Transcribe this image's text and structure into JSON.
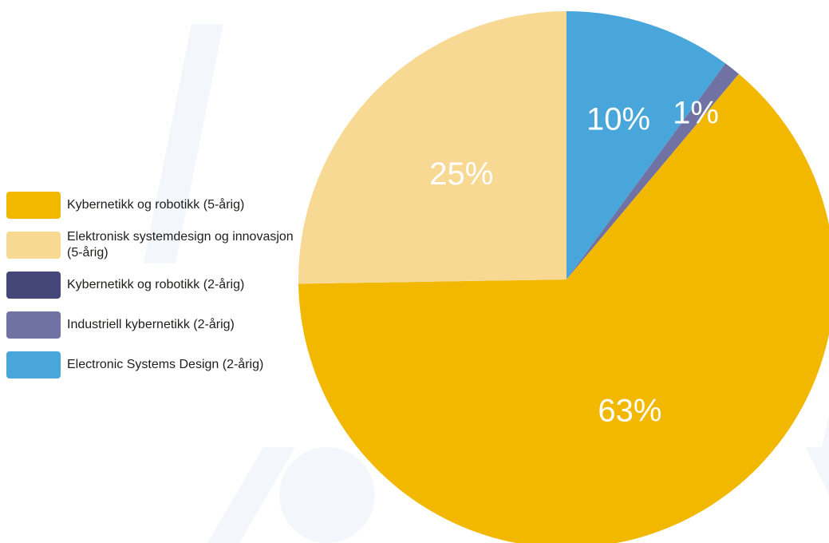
{
  "chart_data": {
    "type": "pie",
    "title": "",
    "categories": [
      "Kybernetikk og robotikk (5-årig)",
      "Elektronisk systemdesign og innovasjon (5-årig)",
      "Kybernetikk og robotikk (2-årig)",
      "Industriell kybernetikk (2-årig)",
      "Electronic Systems Design (2-årig)"
    ],
    "values": [
      63,
      25,
      0,
      1,
      10
    ],
    "labels": [
      "63%",
      "25%",
      "",
      "1%",
      "10%"
    ],
    "colors": [
      "#f2b800",
      "#f7d993",
      "#454779",
      "#6f72a3",
      "#48a6da"
    ],
    "legend_position": "left"
  }
}
